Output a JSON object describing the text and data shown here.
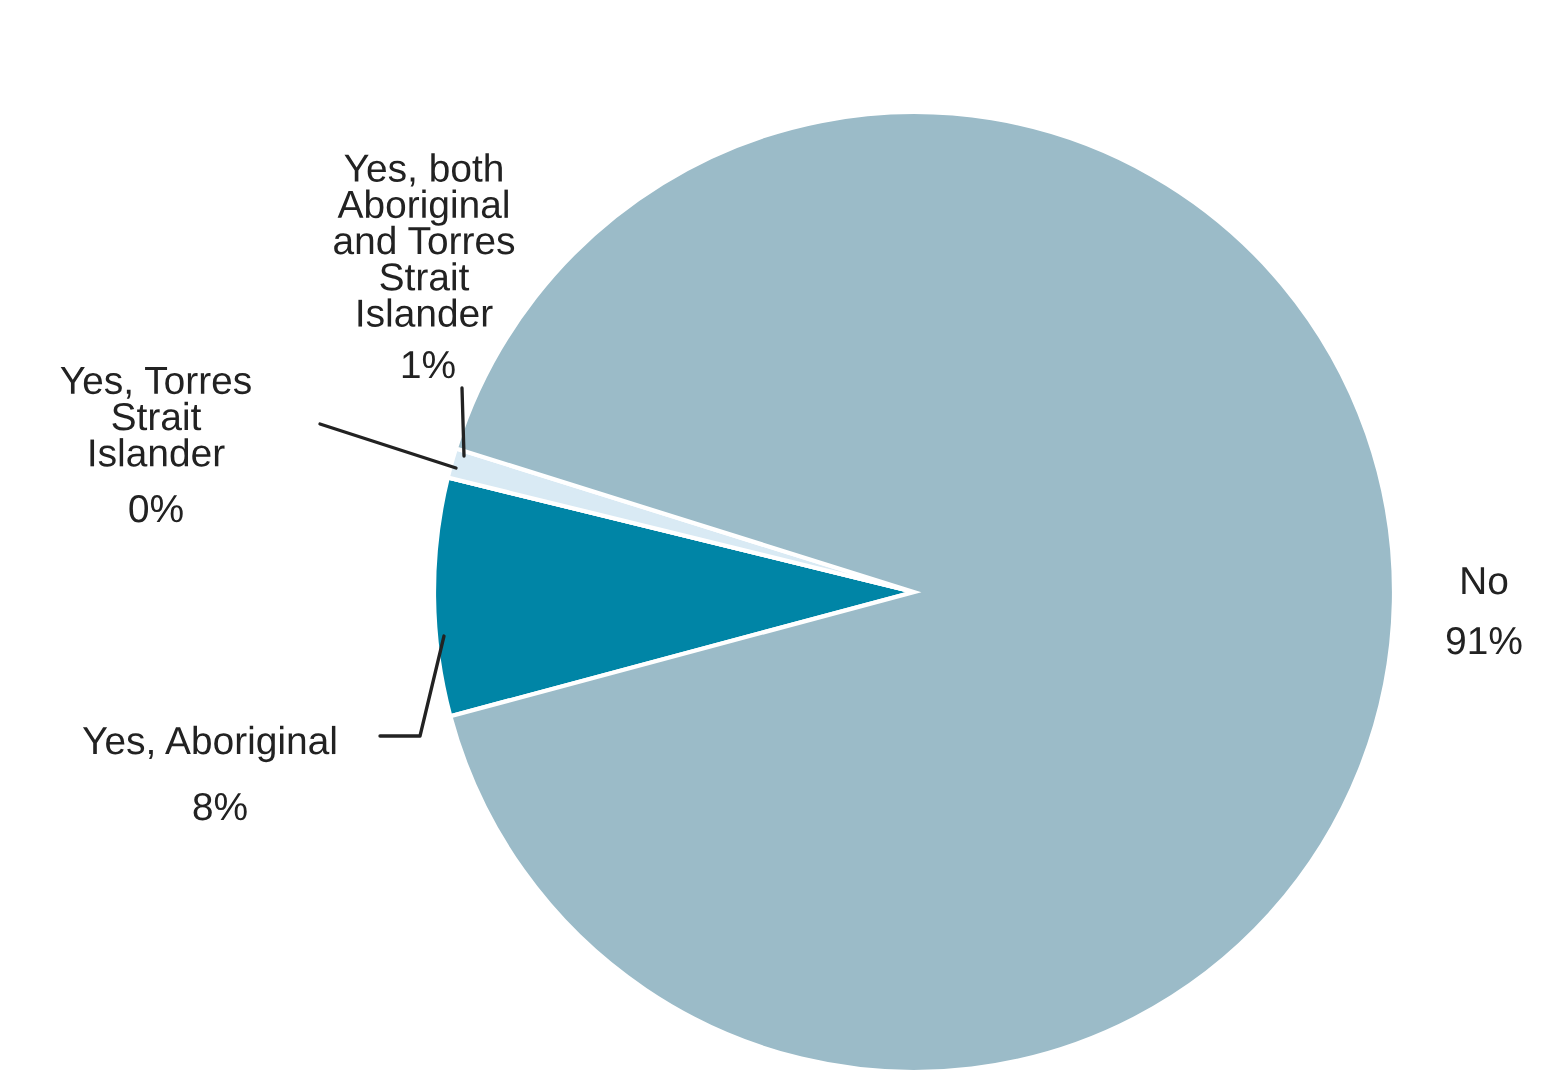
{
  "chart_data": {
    "type": "pie",
    "categories": [
      "Yes, Aboriginal",
      "Yes, Torres Strait Islander",
      "Yes, both Aboriginal and Torres Strait Islander",
      "No"
    ],
    "values": [
      8,
      0,
      1,
      91
    ],
    "value_labels": [
      "8%",
      "0%",
      "1%",
      "91%"
    ],
    "colors": [
      "#0085a6",
      "#1f3864",
      "#d9eaf4",
      "#9bbbc8"
    ],
    "legend": false
  }
}
